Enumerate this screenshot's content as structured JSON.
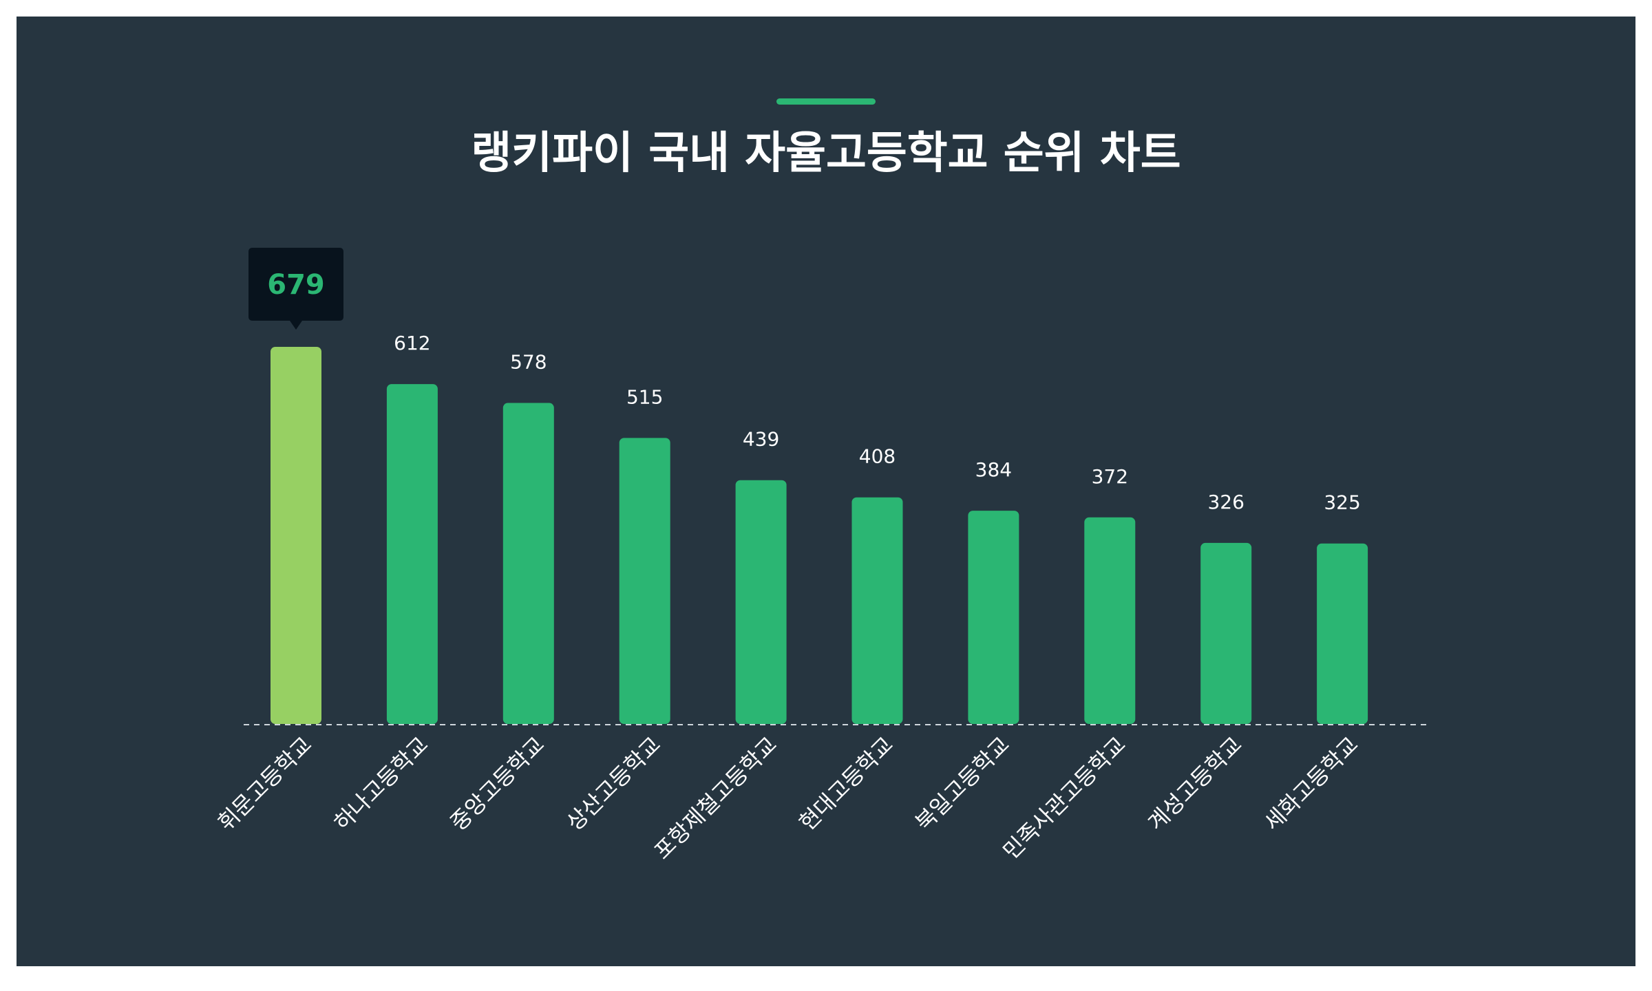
{
  "colors": {
    "background": "#263540",
    "bar": "#2bb673",
    "highlight_bar": "#97d063",
    "accent_line": "#2bb673",
    "tooltip_bg": "#08131d",
    "label": "#ffffff",
    "baseline": "#cfd6dc"
  },
  "chart_data": {
    "type": "bar",
    "title": "랭키파이 국내 자율고등학교 순위 차트",
    "xlabel": "",
    "ylabel": "",
    "ylim": [
      0,
      679
    ],
    "grid": false,
    "highlight_index": 0,
    "categories": [
      "휘문고등학교",
      "하나고등학교",
      "중앙고등학교",
      "상산고등학교",
      "포항제철고등학교",
      "현대고등학교",
      "북일고등학교",
      "민족사관고등학교",
      "계성고등학교",
      "세화고등학교"
    ],
    "values": [
      679,
      612,
      578,
      515,
      439,
      408,
      384,
      372,
      326,
      325
    ]
  }
}
